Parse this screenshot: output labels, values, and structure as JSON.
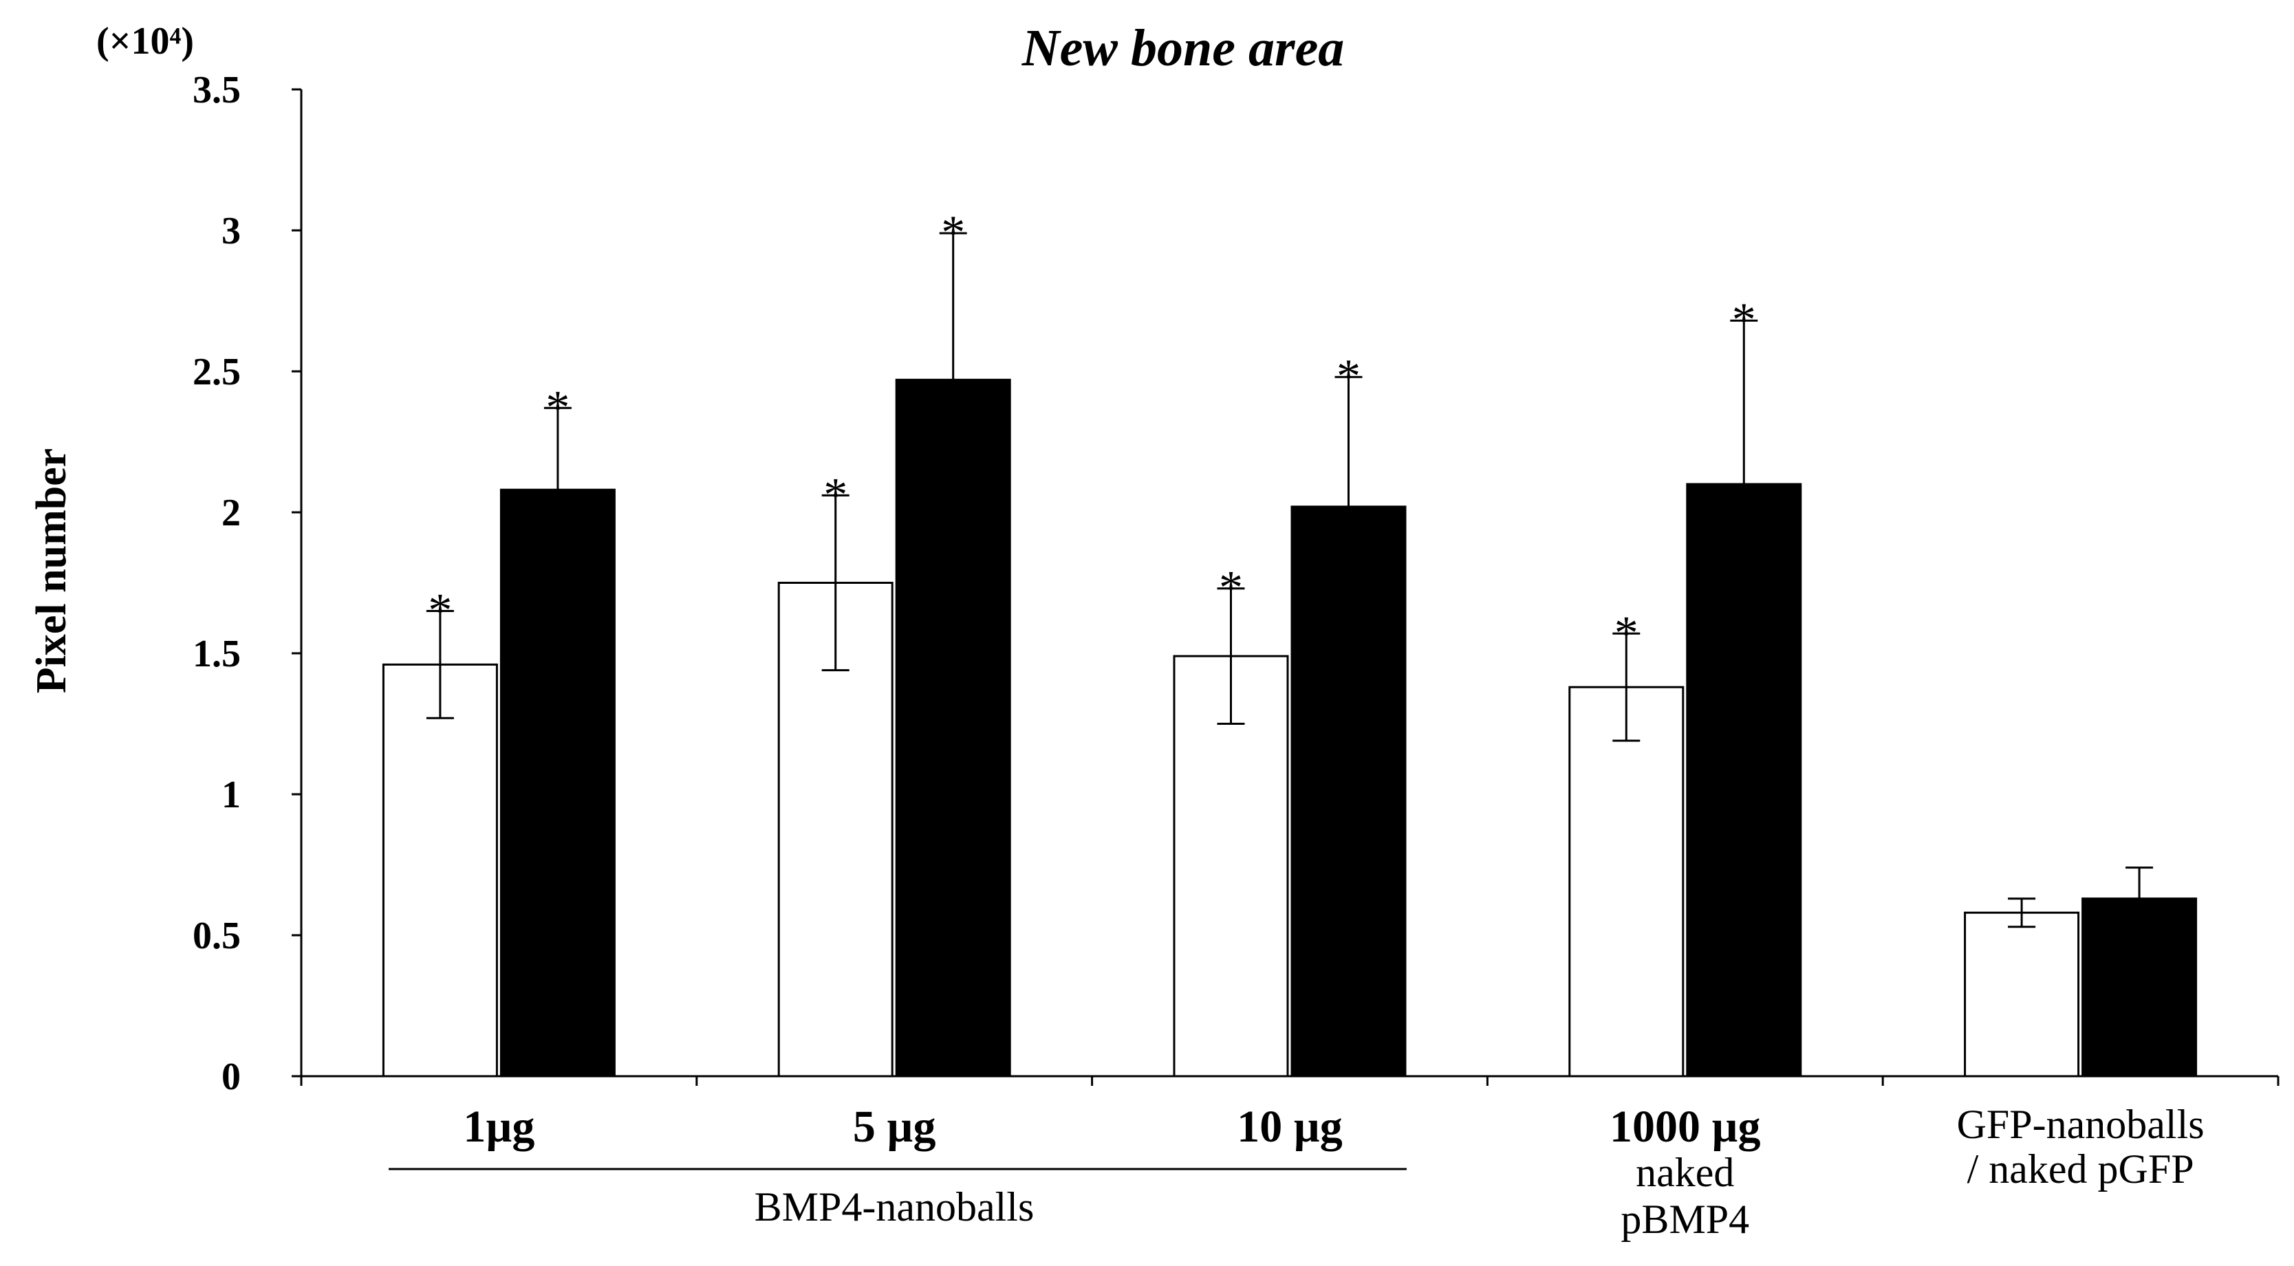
{
  "chart_data": {
    "type": "bar",
    "title": "New bone area",
    "multiplier_label": "(×10⁴)",
    "ylabel": "Pixel number",
    "xlabel": "",
    "ylim": [
      0,
      3.5
    ],
    "yticks": [
      "0",
      "0.5",
      "1",
      "1.5",
      "2",
      "2.5",
      "3",
      "3.5"
    ],
    "ytick_values": [
      0,
      0.5,
      1,
      1.5,
      2,
      2.5,
      3,
      3.5
    ],
    "grid": false,
    "legend": "none",
    "categories": [
      "1µg",
      "5 µg",
      "10 µg",
      "1000 µg",
      "GFP-nanoballs / naked pGFP"
    ],
    "category_lines": [
      [
        "1µg"
      ],
      [
        "5 µg"
      ],
      [
        "10 µg"
      ],
      [
        "1000 µg",
        "naked",
        "pBMP4"
      ],
      [
        "GFP-nanoballs",
        "/ naked pGFP"
      ]
    ],
    "group_label": "BMP4-nanoballs",
    "series": [
      {
        "name": "white bars",
        "color": "#ffffff",
        "values": [
          1.46,
          1.75,
          1.49,
          1.38,
          0.58
        ],
        "errors": [
          0.19,
          0.31,
          0.24,
          0.19,
          0.05
        ],
        "significance": [
          "*",
          "*",
          "*",
          "*",
          ""
        ]
      },
      {
        "name": "black bars",
        "color": "#000000",
        "values": [
          2.08,
          2.47,
          2.02,
          2.1,
          0.63
        ],
        "errors": [
          0.29,
          0.52,
          0.46,
          0.58,
          0.11
        ],
        "significance": [
          "*",
          "*",
          "*",
          "*",
          ""
        ]
      }
    ]
  }
}
